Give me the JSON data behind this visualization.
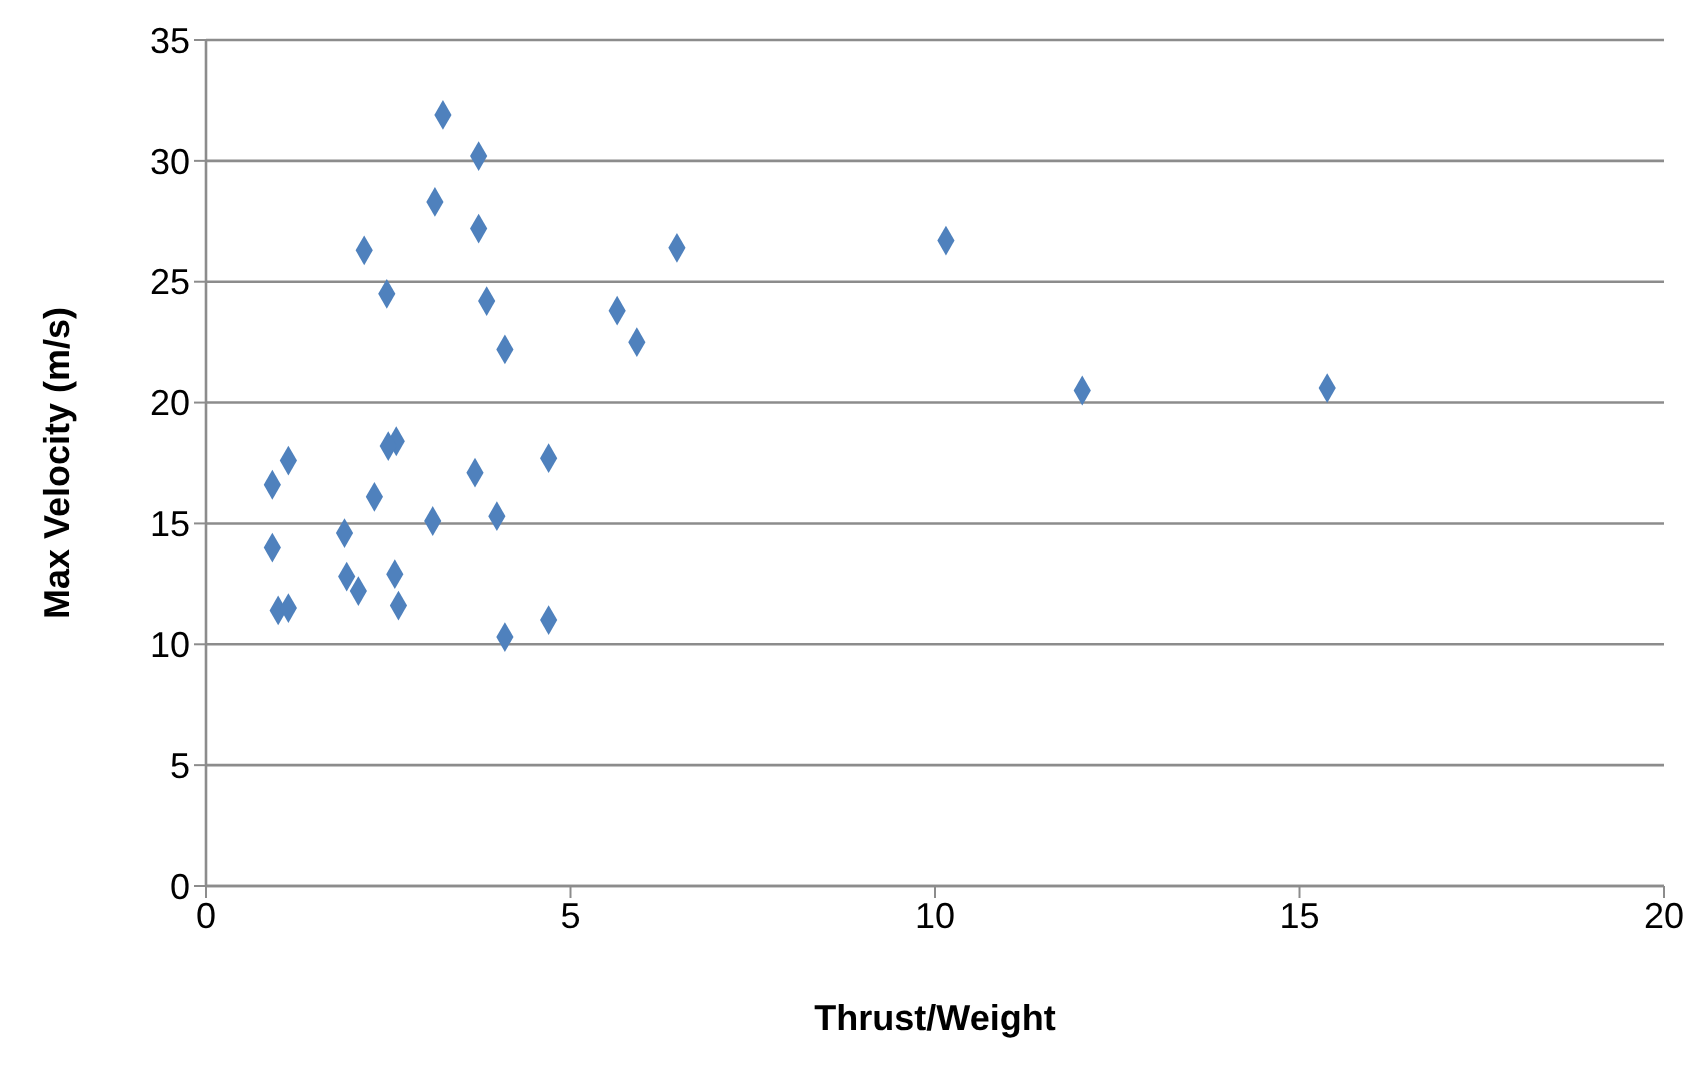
{
  "chart_data": {
    "type": "scatter",
    "xlabel": "Thrust/Weight",
    "ylabel": "Max Velocity (m/s)",
    "x": [
      3.25,
      3.74,
      3.14,
      2.17,
      3.74,
      6.46,
      10.15,
      2.48,
      3.85,
      5.64,
      5.91,
      4.1,
      12.02,
      15.38,
      1.13,
      0.91,
      2.61,
      2.5,
      3.69,
      4.7,
      2.31,
      0.91,
      1.9,
      3.11,
      3.99,
      1.93,
      2.09,
      2.59,
      2.64,
      0.99,
      1.13,
      4.1,
      4.7
    ],
    "values": [
      31.9,
      30.2,
      28.3,
      26.3,
      27.2,
      26.4,
      26.7,
      24.5,
      24.2,
      23.8,
      22.5,
      22.2,
      20.5,
      20.6,
      17.6,
      16.6,
      18.4,
      18.2,
      17.1,
      17.7,
      16.1,
      14.0,
      14.6,
      15.1,
      15.3,
      12.8,
      12.2,
      12.9,
      11.6,
      11.4,
      11.5,
      10.3,
      11.0
    ],
    "color": "#4f81bd",
    "marker": "diamond",
    "grid": "y",
    "xlim": [
      0,
      20
    ],
    "xticks": [
      0,
      5,
      10,
      15,
      20
    ],
    "ylim": [
      0,
      35
    ],
    "yticks": [
      0,
      5,
      10,
      15,
      20,
      25,
      30,
      35
    ]
  }
}
